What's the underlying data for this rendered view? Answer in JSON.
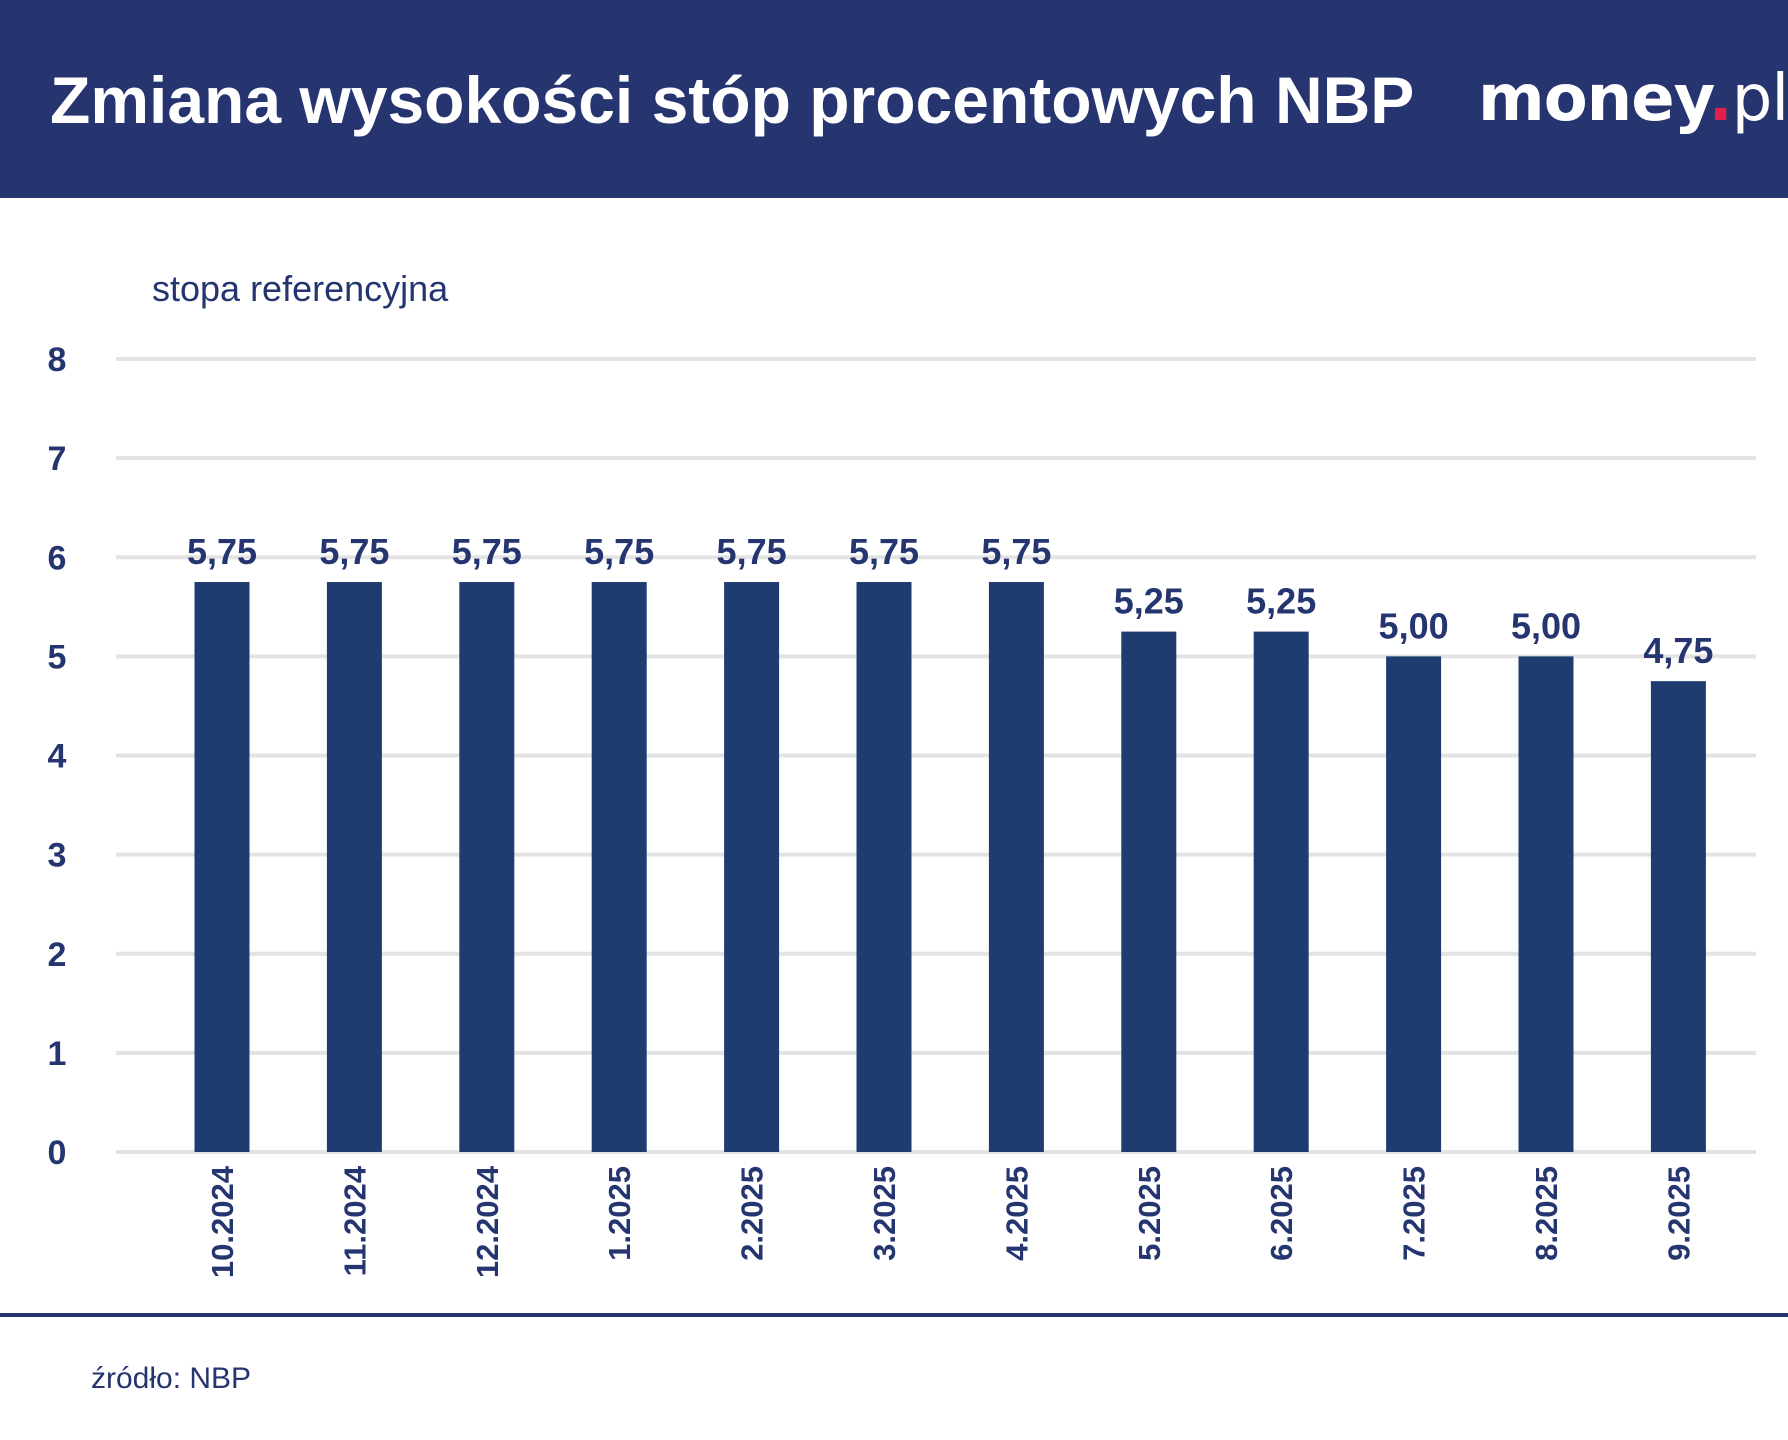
{
  "header": {
    "title": "Zmiana wysokości stóp procentowych NBP",
    "logo": "money.pl"
  },
  "footer": {
    "source": "źródło: NBP"
  },
  "colors": {
    "header_bg": "#26346f",
    "bar": "#1f3c70",
    "text": "#253570",
    "grid": "#e3e3e3",
    "logo_dot": "#e3204c"
  },
  "chart_data": {
    "type": "bar",
    "title": "Zmiana wysokości stóp procentowych NBP",
    "ylabel": "stopa referencyjna",
    "xlabel": "",
    "ylim": [
      0,
      8
    ],
    "yticks": [
      "0",
      "1",
      "2",
      "3",
      "4",
      "5",
      "6",
      "7",
      "8"
    ],
    "grid": true,
    "categories": [
      "10.2024",
      "11.2024",
      "12.2024",
      "1.2025",
      "2.2025",
      "3.2025",
      "4.2025",
      "5.2025",
      "6.2025",
      "7.2025",
      "8.2025",
      "9.2025"
    ],
    "values": [
      5.75,
      5.75,
      5.75,
      5.75,
      5.75,
      5.75,
      5.75,
      5.25,
      5.25,
      5.0,
      5.0,
      4.75
    ],
    "labels": [
      "5,75",
      "5,75",
      "5,75",
      "5,75",
      "5,75",
      "5,75",
      "5,75",
      "5,25",
      "5,25",
      "5,00",
      "5,00",
      "4,75"
    ]
  }
}
